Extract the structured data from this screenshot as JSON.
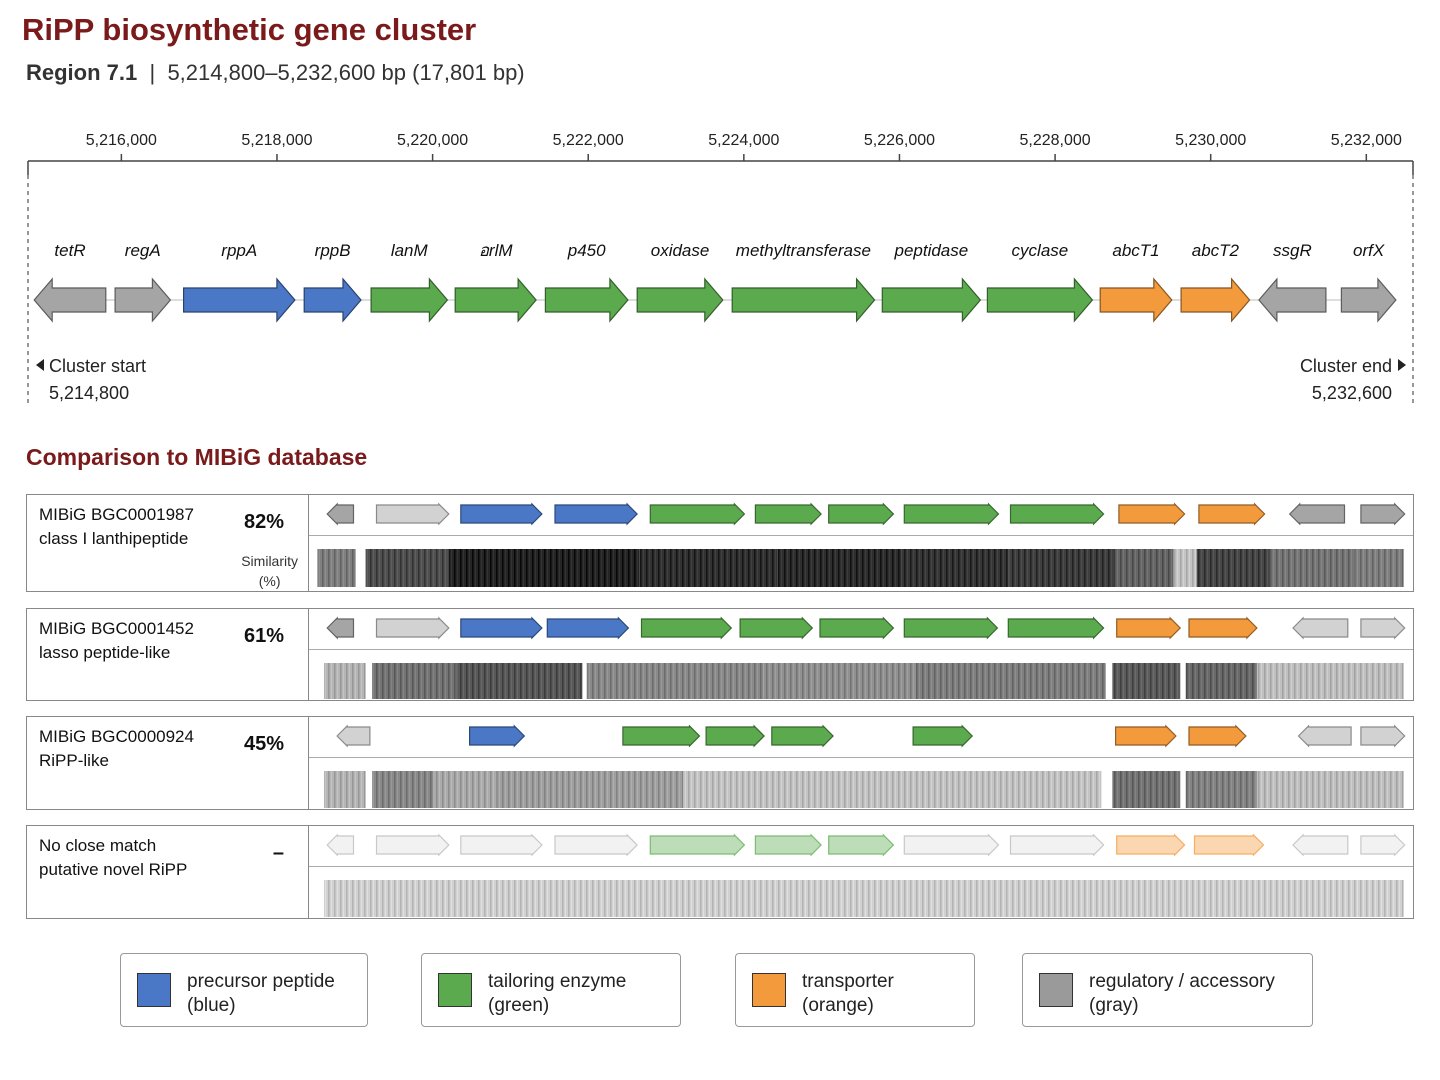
{
  "title": "RiPP biosynthetic gene cluster",
  "subtitle": {
    "region": "Region 7.1",
    "separator": "|",
    "range": "5,214,800–5,232,600 bp (17,801 bp)"
  },
  "axis": {
    "start_bp": 5214800,
    "end_bp": 5232600,
    "ticks": [
      {
        "bp": 5216000,
        "label": "5,216,000"
      },
      {
        "bp": 5218000,
        "label": "5,218,000"
      },
      {
        "bp": 5220000,
        "label": "5,220,000"
      },
      {
        "bp": 5222000,
        "label": "5,222,000"
      },
      {
        "bp": 5224000,
        "label": "5,224,000"
      },
      {
        "bp": 5226000,
        "label": "5,226,000"
      },
      {
        "bp": 5228000,
        "label": "5,228,000"
      },
      {
        "bp": 5230000,
        "label": "5,230,000"
      },
      {
        "bp": 5232000,
        "label": "5,232,000"
      }
    ]
  },
  "genes": [
    {
      "name": "tetR",
      "start_bp": 5214880,
      "end_bp": 5215800,
      "strand": "-",
      "category": "regulatory"
    },
    {
      "name": "regA",
      "start_bp": 5215920,
      "end_bp": 5216630,
      "strand": "+",
      "category": "regulatory"
    },
    {
      "name": "rppA",
      "start_bp": 5216800,
      "end_bp": 5218230,
      "strand": "+",
      "category": "precursor"
    },
    {
      "name": "rppB",
      "start_bp": 5218350,
      "end_bp": 5219080,
      "strand": "+",
      "category": "precursor"
    },
    {
      "name": "lanM",
      "start_bp": 5219210,
      "end_bp": 5220190,
      "strand": "+",
      "category": "tailoring"
    },
    {
      "name": "อrlM",
      "start_bp": 5220290,
      "end_bp": 5221330,
      "strand": "+",
      "category": "tailoring"
    },
    {
      "name": "p450",
      "start_bp": 5221450,
      "end_bp": 5222510,
      "strand": "+",
      "category": "tailoring"
    },
    {
      "name": "oxidase",
      "start_bp": 5222630,
      "end_bp": 5223730,
      "strand": "+",
      "category": "tailoring"
    },
    {
      "name": "methyltransferase",
      "start_bp": 5223850,
      "end_bp": 5225680,
      "strand": "+",
      "category": "tailoring"
    },
    {
      "name": "peptidase",
      "start_bp": 5225780,
      "end_bp": 5227040,
      "strand": "+",
      "category": "tailoring"
    },
    {
      "name": "cyclase",
      "start_bp": 5227130,
      "end_bp": 5228480,
      "strand": "+",
      "category": "tailoring"
    },
    {
      "name": "abcT1",
      "start_bp": 5228580,
      "end_bp": 5229500,
      "strand": "+",
      "category": "transporter"
    },
    {
      "name": "abcT2",
      "start_bp": 5229620,
      "end_bp": 5230500,
      "strand": "+",
      "category": "transporter"
    },
    {
      "name": "ssgR",
      "start_bp": 5230620,
      "end_bp": 5231480,
      "strand": "-",
      "category": "regulatory"
    },
    {
      "name": "orfX",
      "start_bp": 5231680,
      "end_bp": 5232380,
      "strand": "+",
      "category": "regulatory"
    }
  ],
  "cluster_start": {
    "label": "Cluster start",
    "value": "5,214,800"
  },
  "cluster_end": {
    "label": "Cluster end",
    "value": "5,232,600"
  },
  "comparison_heading": "Comparison to MIBiG database",
  "comparisons": [
    {
      "id": "MIBiG BGC0001987",
      "class": "class I lanthipeptide",
      "similarity": "82%",
      "similarity_label": "Similarity",
      "similarity_unit": "(%)",
      "faded": false,
      "genes": [
        {
          "start": 0.013,
          "end": 0.037,
          "strand": "-",
          "category": "regulatory"
        },
        {
          "start": 0.058,
          "end": 0.124,
          "strand": "+",
          "category": "regulatory-light"
        },
        {
          "start": 0.135,
          "end": 0.209,
          "strand": "+",
          "category": "precursor"
        },
        {
          "start": 0.221,
          "end": 0.296,
          "strand": "+",
          "category": "precursor"
        },
        {
          "start": 0.308,
          "end": 0.394,
          "strand": "+",
          "category": "tailoring"
        },
        {
          "start": 0.404,
          "end": 0.464,
          "strand": "+",
          "category": "tailoring"
        },
        {
          "start": 0.471,
          "end": 0.53,
          "strand": "+",
          "category": "tailoring"
        },
        {
          "start": 0.54,
          "end": 0.626,
          "strand": "+",
          "category": "tailoring"
        },
        {
          "start": 0.637,
          "end": 0.722,
          "strand": "+",
          "category": "tailoring"
        },
        {
          "start": 0.736,
          "end": 0.796,
          "strand": "+",
          "category": "transporter"
        },
        {
          "start": 0.809,
          "end": 0.869,
          "strand": "+",
          "category": "transporter"
        },
        {
          "start": 0.892,
          "end": 0.942,
          "strand": "-",
          "category": "regulatory"
        },
        {
          "start": 0.957,
          "end": 0.997,
          "strand": "+",
          "category": "regulatory"
        }
      ],
      "identity_segments": [
        {
          "start": 0.004,
          "end": 0.039,
          "level": 0.5
        },
        {
          "start": 0.048,
          "end": 0.124,
          "level": 0.72
        },
        {
          "start": 0.124,
          "end": 0.298,
          "level": 0.92
        },
        {
          "start": 0.298,
          "end": 0.424,
          "level": 0.86
        },
        {
          "start": 0.424,
          "end": 0.537,
          "level": 0.88
        },
        {
          "start": 0.537,
          "end": 0.635,
          "level": 0.84
        },
        {
          "start": 0.635,
          "end": 0.732,
          "level": 0.8
        },
        {
          "start": 0.732,
          "end": 0.786,
          "level": 0.62
        },
        {
          "start": 0.786,
          "end": 0.807,
          "level": 0.18
        },
        {
          "start": 0.807,
          "end": 0.874,
          "level": 0.76
        },
        {
          "start": 0.874,
          "end": 0.951,
          "level": 0.54
        },
        {
          "start": 0.951,
          "end": 0.996,
          "level": 0.5
        }
      ]
    },
    {
      "id": "MIBiG BGC0001452",
      "class": "lasso peptide-like",
      "similarity": "61%",
      "faded": false,
      "genes": [
        {
          "start": 0.013,
          "end": 0.037,
          "strand": "-",
          "category": "regulatory"
        },
        {
          "start": 0.058,
          "end": 0.124,
          "strand": "+",
          "category": "regulatory-light"
        },
        {
          "start": 0.135,
          "end": 0.209,
          "strand": "+",
          "category": "precursor"
        },
        {
          "start": 0.214,
          "end": 0.288,
          "strand": "+",
          "category": "precursor"
        },
        {
          "start": 0.3,
          "end": 0.382,
          "strand": "+",
          "category": "tailoring"
        },
        {
          "start": 0.39,
          "end": 0.456,
          "strand": "+",
          "category": "tailoring"
        },
        {
          "start": 0.463,
          "end": 0.53,
          "strand": "+",
          "category": "tailoring"
        },
        {
          "start": 0.54,
          "end": 0.625,
          "strand": "+",
          "category": "tailoring"
        },
        {
          "start": 0.635,
          "end": 0.722,
          "strand": "+",
          "category": "tailoring"
        },
        {
          "start": 0.734,
          "end": 0.792,
          "strand": "+",
          "category": "transporter"
        },
        {
          "start": 0.8,
          "end": 0.862,
          "strand": "+",
          "category": "transporter"
        },
        {
          "start": 0.895,
          "end": 0.945,
          "strand": "-",
          "category": "regulatory-light"
        },
        {
          "start": 0.957,
          "end": 0.997,
          "strand": "+",
          "category": "regulatory-light"
        }
      ],
      "identity_segments": [
        {
          "start": 0.01,
          "end": 0.048,
          "level": 0.25
        },
        {
          "start": 0.054,
          "end": 0.131,
          "level": 0.55
        },
        {
          "start": 0.131,
          "end": 0.246,
          "level": 0.68
        },
        {
          "start": 0.25,
          "end": 0.411,
          "level": 0.45
        },
        {
          "start": 0.411,
          "end": 0.55,
          "level": 0.42
        },
        {
          "start": 0.55,
          "end": 0.724,
          "level": 0.5
        },
        {
          "start": 0.73,
          "end": 0.792,
          "level": 0.66
        },
        {
          "start": 0.797,
          "end": 0.862,
          "level": 0.6
        },
        {
          "start": 0.862,
          "end": 0.996,
          "level": 0.2
        }
      ]
    },
    {
      "id": "MIBiG BGC0000924",
      "class": "RiPP-like",
      "similarity": "45%",
      "faded": false,
      "genes": [
        {
          "start": 0.022,
          "end": 0.052,
          "strand": "-",
          "category": "regulatory-light"
        },
        {
          "start": 0.143,
          "end": 0.193,
          "strand": "+",
          "category": "precursor"
        },
        {
          "start": 0.283,
          "end": 0.353,
          "strand": "+",
          "category": "tailoring"
        },
        {
          "start": 0.359,
          "end": 0.412,
          "strand": "+",
          "category": "tailoring"
        },
        {
          "start": 0.419,
          "end": 0.475,
          "strand": "+",
          "category": "tailoring"
        },
        {
          "start": 0.548,
          "end": 0.602,
          "strand": "+",
          "category": "tailoring"
        },
        {
          "start": 0.733,
          "end": 0.788,
          "strand": "+",
          "category": "transporter"
        },
        {
          "start": 0.8,
          "end": 0.852,
          "strand": "+",
          "category": "transporter"
        },
        {
          "start": 0.9,
          "end": 0.948,
          "strand": "-",
          "category": "regulatory-light"
        },
        {
          "start": 0.957,
          "end": 0.997,
          "strand": "+",
          "category": "regulatory-light"
        }
      ],
      "identity_segments": [
        {
          "start": 0.01,
          "end": 0.048,
          "level": 0.25
        },
        {
          "start": 0.054,
          "end": 0.11,
          "level": 0.45
        },
        {
          "start": 0.11,
          "end": 0.168,
          "level": 0.3
        },
        {
          "start": 0.168,
          "end": 0.338,
          "level": 0.35
        },
        {
          "start": 0.338,
          "end": 0.72,
          "level": 0.18
        },
        {
          "start": 0.73,
          "end": 0.792,
          "level": 0.55
        },
        {
          "start": 0.797,
          "end": 0.862,
          "level": 0.48
        },
        {
          "start": 0.862,
          "end": 0.996,
          "level": 0.2
        }
      ]
    },
    {
      "id": "No close match",
      "class": "putative novel RiPP",
      "similarity": "–",
      "faded": true,
      "genes": [
        {
          "start": 0.013,
          "end": 0.037,
          "strand": "-",
          "category": "regulatory"
        },
        {
          "start": 0.058,
          "end": 0.124,
          "strand": "+",
          "category": "regulatory"
        },
        {
          "start": 0.135,
          "end": 0.209,
          "strand": "+",
          "category": "regulatory"
        },
        {
          "start": 0.221,
          "end": 0.296,
          "strand": "+",
          "category": "regulatory"
        },
        {
          "start": 0.308,
          "end": 0.394,
          "strand": "+",
          "category": "tailoring"
        },
        {
          "start": 0.404,
          "end": 0.464,
          "strand": "+",
          "category": "tailoring"
        },
        {
          "start": 0.471,
          "end": 0.53,
          "strand": "+",
          "category": "tailoring"
        },
        {
          "start": 0.54,
          "end": 0.626,
          "strand": "+",
          "category": "regulatory"
        },
        {
          "start": 0.637,
          "end": 0.722,
          "strand": "+",
          "category": "regulatory"
        },
        {
          "start": 0.734,
          "end": 0.796,
          "strand": "+",
          "category": "transporter"
        },
        {
          "start": 0.805,
          "end": 0.868,
          "strand": "+",
          "category": "transporter"
        },
        {
          "start": 0.895,
          "end": 0.945,
          "strand": "-",
          "category": "regulatory"
        },
        {
          "start": 0.957,
          "end": 0.997,
          "strand": "+",
          "category": "regulatory"
        }
      ],
      "identity_segments": [
        {
          "start": 0.01,
          "end": 0.996,
          "level": 0.12
        }
      ]
    }
  ],
  "legend": [
    {
      "line1": "precursor peptide",
      "line2": "(blue)",
      "color": "#4a78c6"
    },
    {
      "line1": "tailoring enzyme",
      "line2": "(green)",
      "color": "#5bab4e"
    },
    {
      "line1": "transporter",
      "line2": "(orange)",
      "color": "#f39a3c"
    },
    {
      "line1": "regulatory / accessory",
      "line2": "(gray)",
      "color": "#9a9a9a"
    }
  ],
  "colors": {
    "precursor": "#4a78c6",
    "tailoring": "#5bab4e",
    "transporter": "#f39a3c",
    "regulatory": "#a5a5a5",
    "regulatory-light": "#d2d2d2",
    "title": "#7a1a1a"
  }
}
